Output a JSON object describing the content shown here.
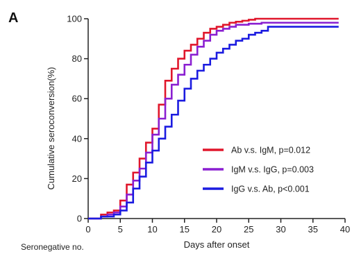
{
  "panel_letter": "A",
  "footer_label": "Seronegative no.",
  "chart_data": {
    "type": "line",
    "step": true,
    "xlabel": "Days after onset",
    "ylabel": "Cumulative seroconversion(%)",
    "xlim": [
      0,
      40
    ],
    "ylim": [
      0,
      100
    ],
    "xticks": [
      0,
      5,
      10,
      15,
      20,
      25,
      30,
      35,
      40
    ],
    "yticks": [
      0,
      20,
      40,
      60,
      80,
      100
    ],
    "grid": false,
    "legend_position": "bottom-right",
    "series": [
      {
        "name": "Ab v.s. IgM, p=0.012",
        "color": "#e0162b",
        "x": [
          0,
          2,
          3,
          4,
          5,
          6,
          7,
          8,
          9,
          10,
          11,
          12,
          13,
          14,
          15,
          16,
          17,
          18,
          19,
          20,
          21,
          22,
          23,
          24,
          25,
          26,
          39
        ],
        "y": [
          0,
          2,
          3,
          4,
          9,
          17,
          23,
          30,
          38,
          45,
          57,
          69,
          75,
          80,
          84,
          87,
          90,
          93,
          95,
          96,
          97,
          98,
          98.5,
          99,
          99.5,
          100,
          100
        ]
      },
      {
        "name": "IgM v.s. IgG, p=0.003",
        "color": "#8a1fd1",
        "x": [
          0,
          2,
          3,
          4,
          5,
          6,
          7,
          8,
          9,
          10,
          11,
          12,
          13,
          14,
          15,
          16,
          17,
          18,
          19,
          20,
          21,
          22,
          23,
          25,
          27,
          39
        ],
        "y": [
          0,
          1,
          2,
          3,
          6,
          12,
          19,
          25,
          33,
          42,
          50,
          60,
          67,
          72,
          77,
          82,
          86,
          89,
          92,
          94,
          95,
          96,
          97,
          97.5,
          98,
          98
        ]
      },
      {
        "name": "IgG v.s. Ab, p<0.001",
        "color": "#1b1be0",
        "x": [
          0,
          2,
          4,
          5,
          6,
          7,
          8,
          9,
          10,
          11,
          12,
          13,
          14,
          15,
          16,
          17,
          18,
          19,
          20,
          21,
          22,
          23,
          24,
          25,
          26,
          27,
          28,
          39
        ],
        "y": [
          0,
          1,
          2,
          4,
          8,
          15,
          21,
          28,
          34,
          40,
          46,
          52,
          59,
          65,
          70,
          74,
          77,
          80,
          83,
          85,
          87,
          89,
          90,
          92,
          93,
          94,
          96,
          96
        ]
      }
    ]
  }
}
